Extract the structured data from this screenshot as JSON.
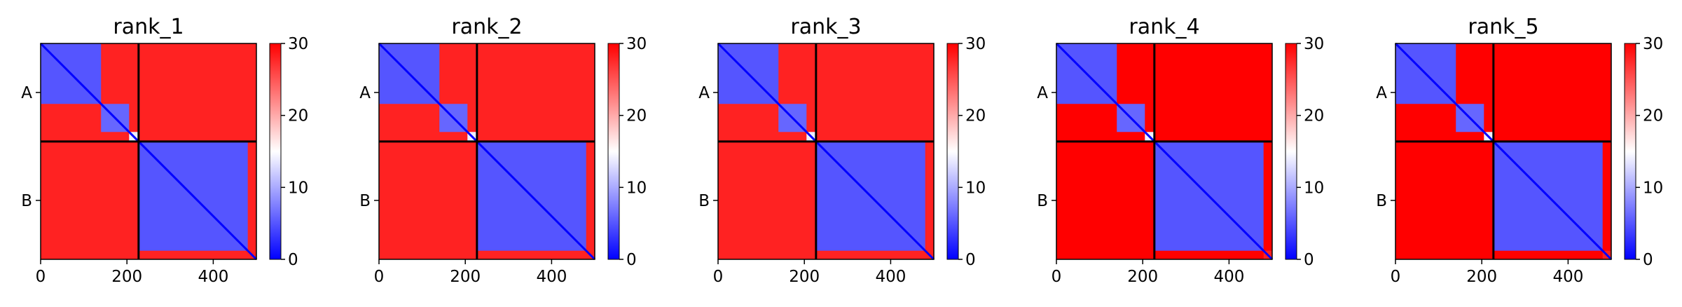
{
  "chart_data": [
    {
      "type": "heatmap",
      "title": "rank_1",
      "row_tick_labels": [
        "A",
        "B"
      ],
      "x_ticks": [
        0,
        200,
        400
      ],
      "xlim": [
        0,
        500
      ],
      "chain_boundary": 227,
      "diagonal_blocks": [
        {
          "start": 0,
          "end": 140,
          "value": 5
        },
        {
          "start": 140,
          "end": 205,
          "value": 6
        },
        {
          "start": 205,
          "end": 227,
          "value": 14
        },
        {
          "start": 227,
          "end": 480,
          "value": 5
        },
        {
          "start": 480,
          "end": 500,
          "value": 28
        }
      ],
      "off_diagonal_value": 28,
      "colorbar": {
        "ticks": [
          0,
          10,
          20,
          30
        ],
        "range": [
          0,
          30
        ],
        "colors": [
          "#0000ff",
          "#ffffff",
          "#ff0000"
        ]
      }
    },
    {
      "type": "heatmap",
      "title": "rank_2",
      "row_tick_labels": [
        "A",
        "B"
      ],
      "x_ticks": [
        0,
        200,
        400
      ],
      "xlim": [
        0,
        500
      ],
      "chain_boundary": 227,
      "diagonal_blocks": [
        {
          "start": 0,
          "end": 140,
          "value": 5
        },
        {
          "start": 140,
          "end": 205,
          "value": 6
        },
        {
          "start": 205,
          "end": 227,
          "value": 14
        },
        {
          "start": 227,
          "end": 480,
          "value": 5
        },
        {
          "start": 480,
          "end": 500,
          "value": 28
        }
      ],
      "off_diagonal_value": 28,
      "colorbar": {
        "ticks": [
          0,
          10,
          20,
          30
        ],
        "range": [
          0,
          30
        ],
        "colors": [
          "#0000ff",
          "#ffffff",
          "#ff0000"
        ]
      }
    },
    {
      "type": "heatmap",
      "title": "rank_3",
      "row_tick_labels": [
        "A",
        "B"
      ],
      "x_ticks": [
        0,
        200,
        400
      ],
      "xlim": [
        0,
        500
      ],
      "chain_boundary": 227,
      "diagonal_blocks": [
        {
          "start": 0,
          "end": 140,
          "value": 5
        },
        {
          "start": 140,
          "end": 205,
          "value": 6
        },
        {
          "start": 205,
          "end": 227,
          "value": 14
        },
        {
          "start": 227,
          "end": 480,
          "value": 5
        },
        {
          "start": 480,
          "end": 500,
          "value": 28
        }
      ],
      "off_diagonal_value": 28,
      "colorbar": {
        "ticks": [
          0,
          10,
          20,
          30
        ],
        "range": [
          0,
          30
        ],
        "colors": [
          "#0000ff",
          "#ffffff",
          "#ff0000"
        ]
      }
    },
    {
      "type": "heatmap",
      "title": "rank_4",
      "row_tick_labels": [
        "A",
        "B"
      ],
      "x_ticks": [
        0,
        200,
        400
      ],
      "xlim": [
        0,
        500
      ],
      "chain_boundary": 227,
      "diagonal_blocks": [
        {
          "start": 0,
          "end": 140,
          "value": 5
        },
        {
          "start": 140,
          "end": 205,
          "value": 6
        },
        {
          "start": 205,
          "end": 227,
          "value": 14
        },
        {
          "start": 227,
          "end": 480,
          "value": 5
        },
        {
          "start": 480,
          "end": 500,
          "value": 28
        }
      ],
      "off_diagonal_value": 30,
      "colorbar": {
        "ticks": [
          0,
          10,
          20,
          30
        ],
        "range": [
          0,
          30
        ],
        "colors": [
          "#0000ff",
          "#ffffff",
          "#ff0000"
        ]
      }
    },
    {
      "type": "heatmap",
      "title": "rank_5",
      "row_tick_labels": [
        "A",
        "B"
      ],
      "x_ticks": [
        0,
        200,
        400
      ],
      "xlim": [
        0,
        500
      ],
      "chain_boundary": 227,
      "diagonal_blocks": [
        {
          "start": 0,
          "end": 140,
          "value": 5
        },
        {
          "start": 140,
          "end": 205,
          "value": 6
        },
        {
          "start": 205,
          "end": 227,
          "value": 14
        },
        {
          "start": 227,
          "end": 480,
          "value": 5
        },
        {
          "start": 480,
          "end": 500,
          "value": 28
        }
      ],
      "off_diagonal_value": 30,
      "colorbar": {
        "ticks": [
          0,
          10,
          20,
          30
        ],
        "range": [
          0,
          30
        ],
        "colors": [
          "#0000ff",
          "#ffffff",
          "#ff0000"
        ]
      }
    }
  ]
}
